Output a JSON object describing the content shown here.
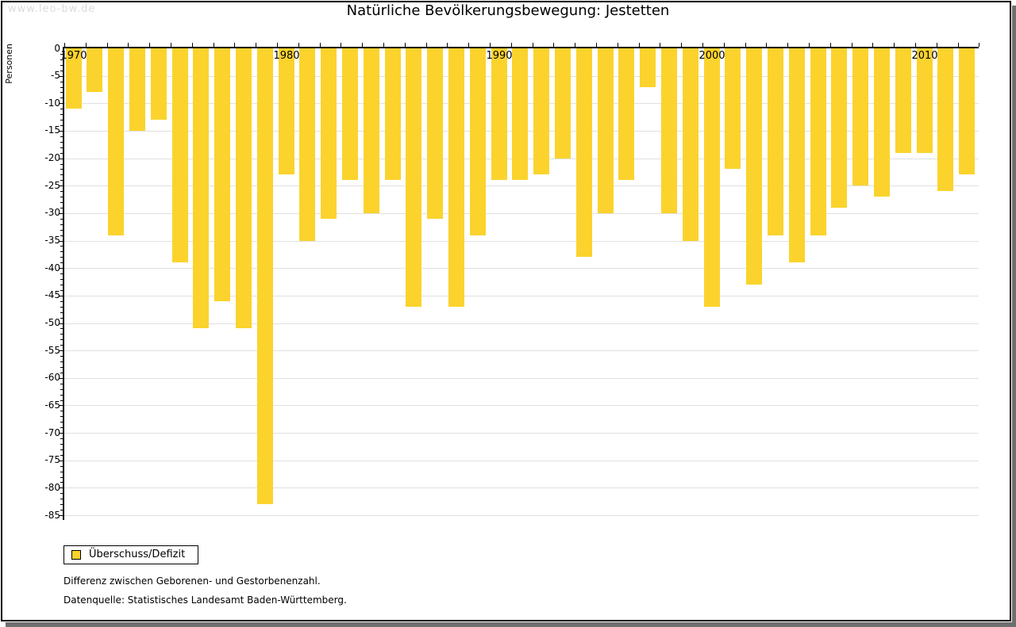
{
  "page": {
    "watermark": "www.leo-bw.de"
  },
  "chart_data": {
    "type": "bar",
    "title": "Natürliche Bevölkerungsbewegung: Jestetten",
    "xlabel": "",
    "ylabel": "Personen",
    "series_name": "Überschuss/Defizit",
    "ylim": [
      -85,
      0
    ],
    "ytick_interval": 5,
    "grid": true,
    "legend_position": "bottom-left",
    "categories": [
      1970,
      1971,
      1972,
      1973,
      1974,
      1975,
      1976,
      1977,
      1978,
      1979,
      1980,
      1981,
      1982,
      1983,
      1984,
      1985,
      1986,
      1987,
      1988,
      1989,
      1990,
      1991,
      1992,
      1993,
      1994,
      1995,
      1996,
      1997,
      1998,
      1999,
      2000,
      2001,
      2002,
      2003,
      2004,
      2005,
      2006,
      2007,
      2008,
      2009,
      2010,
      2011,
      2012
    ],
    "values": [
      -11,
      -8,
      -34,
      -15,
      -13,
      -39,
      -51,
      -46,
      -51,
      -83,
      -23,
      -35,
      -31,
      -24,
      -30,
      -24,
      -47,
      -31,
      -47,
      -34,
      -24,
      -24,
      -23,
      -20,
      -38,
      -30,
      -24,
      -7,
      -30,
      -35,
      -47,
      -22,
      -43,
      -34,
      -39,
      -34,
      -29,
      -25,
      -27,
      -19,
      -19,
      -26,
      -23
    ],
    "ytick_labels": [
      "0",
      "-5",
      "-10",
      "-15",
      "-20",
      "-25",
      "-30",
      "-35",
      "-40",
      "-45",
      "-50",
      "-55",
      "-60",
      "-65",
      "-70",
      "-75",
      "-80",
      "-85"
    ],
    "x_axis_labels": [
      "1970",
      "1980",
      "1990",
      "2000",
      "2010"
    ],
    "colors": {
      "bar": "#fbd32c",
      "gridline": "#e0e0e0",
      "axis": "#000000",
      "watermark": "#dbdbdb",
      "frame_shadow": "#6f6f6f"
    }
  },
  "footnotes": {
    "line1": "Differenz zwischen Geborenen- und Gestorbenenzahl.",
    "line2": "Datenquelle: Statistisches Landesamt Baden-Württemberg."
  }
}
